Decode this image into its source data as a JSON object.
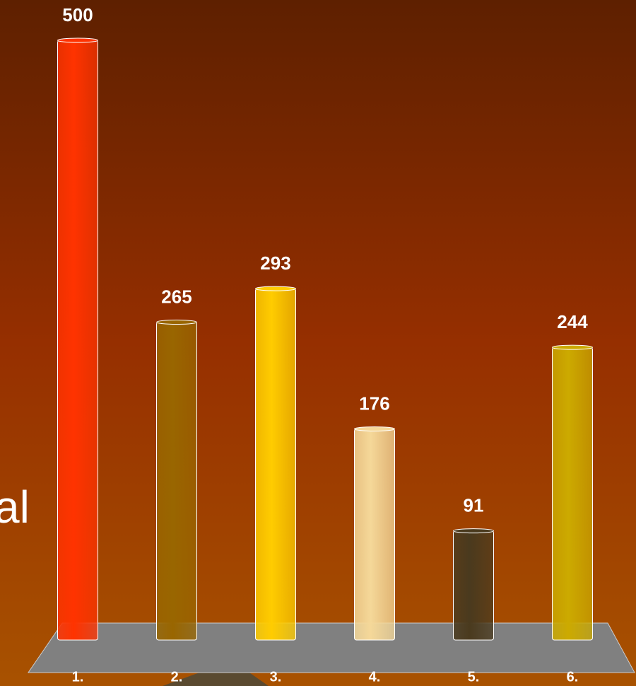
{
  "chart_data": {
    "type": "bar",
    "annotation": "al",
    "categories": [
      "1.",
      "2.",
      "3.",
      "4.",
      "5.",
      "6."
    ],
    "values": [
      500,
      265,
      293,
      176,
      91,
      244
    ],
    "colors": [
      "#ff3300",
      "#996600",
      "#ffcc00",
      "#f5d899",
      "#4a3a1e",
      "#ccaa00"
    ],
    "ylim": [
      0,
      500
    ]
  }
}
